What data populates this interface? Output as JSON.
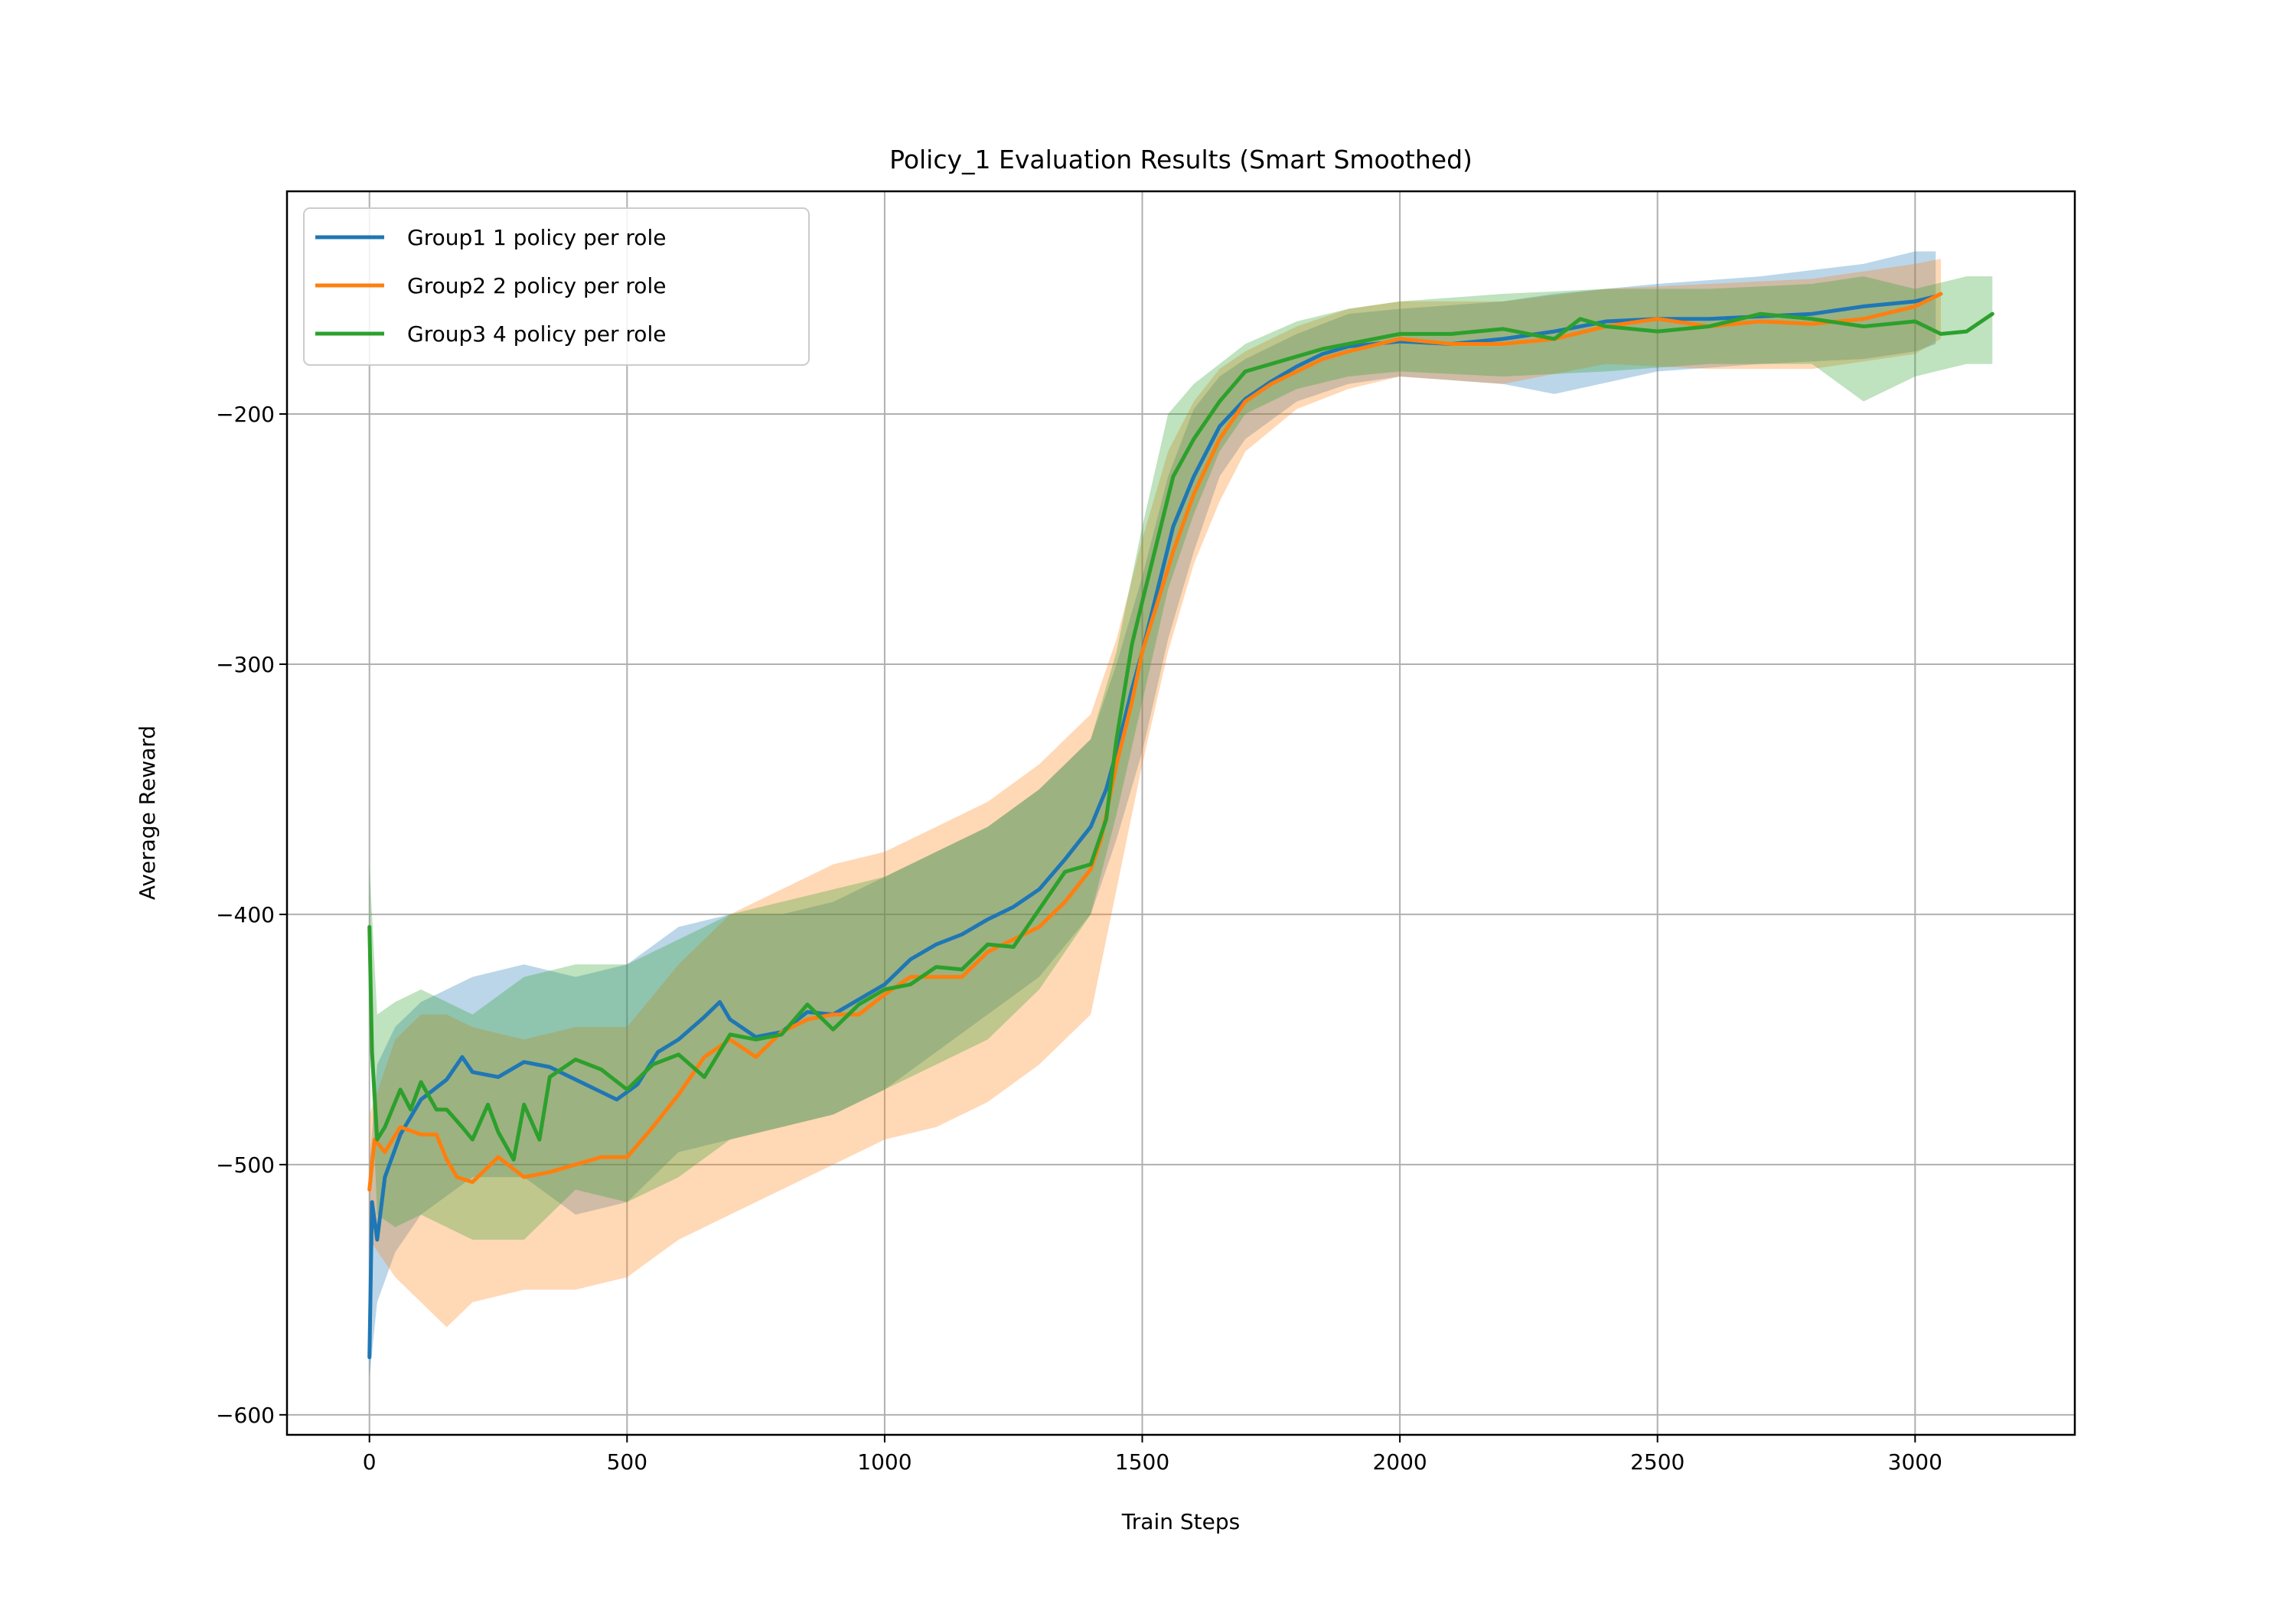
{
  "chart_data": {
    "type": "line",
    "title": "Policy_1 Evaluation Results (Smart Smoothed)",
    "xlabel": "Train Steps",
    "ylabel": "Average Reward",
    "xlim": [
      -160,
      3310
    ],
    "ylim": [
      -608,
      -111
    ],
    "xticks": [
      0,
      500,
      1000,
      1500,
      2000,
      2500,
      3000
    ],
    "yticks": [
      -600,
      -500,
      -400,
      -300,
      -200
    ],
    "grid": true,
    "legend_position": "top-left",
    "series": [
      {
        "name": "Group1 1 policy per role",
        "color": "#1f77b4",
        "points": [
          [
            0,
            -577
          ],
          [
            5,
            -515
          ],
          [
            15,
            -530
          ],
          [
            30,
            -505
          ],
          [
            60,
            -488
          ],
          [
            100,
            -474
          ],
          [
            150,
            -466
          ],
          [
            180,
            -457
          ],
          [
            200,
            -463
          ],
          [
            250,
            -465
          ],
          [
            300,
            -459
          ],
          [
            350,
            -461
          ],
          [
            400,
            -466
          ],
          [
            450,
            -471
          ],
          [
            480,
            -474
          ],
          [
            520,
            -468
          ],
          [
            560,
            -455
          ],
          [
            600,
            -450
          ],
          [
            650,
            -441
          ],
          [
            680,
            -435
          ],
          [
            700,
            -442
          ],
          [
            750,
            -449
          ],
          [
            800,
            -447
          ],
          [
            850,
            -439
          ],
          [
            900,
            -440
          ],
          [
            950,
            -434
          ],
          [
            1000,
            -428
          ],
          [
            1050,
            -418
          ],
          [
            1100,
            -412
          ],
          [
            1150,
            -408
          ],
          [
            1200,
            -402
          ],
          [
            1250,
            -397
          ],
          [
            1300,
            -390
          ],
          [
            1350,
            -378
          ],
          [
            1400,
            -365
          ],
          [
            1430,
            -350
          ],
          [
            1450,
            -335
          ],
          [
            1480,
            -310
          ],
          [
            1500,
            -295
          ],
          [
            1530,
            -270
          ],
          [
            1560,
            -245
          ],
          [
            1600,
            -225
          ],
          [
            1650,
            -205
          ],
          [
            1700,
            -194
          ],
          [
            1750,
            -187
          ],
          [
            1800,
            -181
          ],
          [
            1850,
            -176
          ],
          [
            1900,
            -173
          ],
          [
            2000,
            -171
          ],
          [
            2100,
            -172
          ],
          [
            2200,
            -170
          ],
          [
            2300,
            -167
          ],
          [
            2400,
            -163
          ],
          [
            2500,
            -162
          ],
          [
            2600,
            -162
          ],
          [
            2700,
            -161
          ],
          [
            2800,
            -160
          ],
          [
            2900,
            -157
          ],
          [
            3000,
            -155
          ],
          [
            3040,
            -153
          ]
        ],
        "band": [
          [
            0,
            -585,
            -500
          ],
          [
            15,
            -555,
            -460
          ],
          [
            50,
            -535,
            -445
          ],
          [
            100,
            -520,
            -435
          ],
          [
            200,
            -505,
            -425
          ],
          [
            300,
            -505,
            -420
          ],
          [
            400,
            -520,
            -425
          ],
          [
            500,
            -515,
            -420
          ],
          [
            600,
            -495,
            -405
          ],
          [
            700,
            -490,
            -400
          ],
          [
            800,
            -485,
            -400
          ],
          [
            900,
            -480,
            -395
          ],
          [
            1000,
            -470,
            -385
          ],
          [
            1100,
            -455,
            -375
          ],
          [
            1200,
            -440,
            -365
          ],
          [
            1300,
            -425,
            -350
          ],
          [
            1400,
            -400,
            -330
          ],
          [
            1450,
            -370,
            -300
          ],
          [
            1500,
            -335,
            -265
          ],
          [
            1550,
            -290,
            -225
          ],
          [
            1600,
            -255,
            -198
          ],
          [
            1650,
            -225,
            -185
          ],
          [
            1700,
            -210,
            -178
          ],
          [
            1800,
            -195,
            -168
          ],
          [
            1900,
            -188,
            -160
          ],
          [
            2000,
            -185,
            -158
          ],
          [
            2200,
            -188,
            -155
          ],
          [
            2300,
            -192,
            -152
          ],
          [
            2500,
            -183,
            -148
          ],
          [
            2700,
            -180,
            -145
          ],
          [
            2900,
            -178,
            -140
          ],
          [
            3000,
            -175,
            -135
          ],
          [
            3040,
            -172,
            -135
          ]
        ]
      },
      {
        "name": "Group2 2 policy per role",
        "color": "#ff7f0e",
        "points": [
          [
            0,
            -510
          ],
          [
            10,
            -490
          ],
          [
            30,
            -495
          ],
          [
            60,
            -485
          ],
          [
            100,
            -488
          ],
          [
            130,
            -488
          ],
          [
            150,
            -498
          ],
          [
            170,
            -505
          ],
          [
            200,
            -507
          ],
          [
            250,
            -497
          ],
          [
            300,
            -505
          ],
          [
            350,
            -503
          ],
          [
            400,
            -500
          ],
          [
            450,
            -497
          ],
          [
            500,
            -497
          ],
          [
            550,
            -485
          ],
          [
            600,
            -472
          ],
          [
            650,
            -457
          ],
          [
            700,
            -450
          ],
          [
            750,
            -457
          ],
          [
            800,
            -447
          ],
          [
            850,
            -442
          ],
          [
            900,
            -440
          ],
          [
            950,
            -440
          ],
          [
            1000,
            -432
          ],
          [
            1050,
            -425
          ],
          [
            1100,
            -425
          ],
          [
            1150,
            -425
          ],
          [
            1200,
            -415
          ],
          [
            1250,
            -410
          ],
          [
            1300,
            -405
          ],
          [
            1350,
            -395
          ],
          [
            1400,
            -382
          ],
          [
            1420,
            -370
          ],
          [
            1450,
            -340
          ],
          [
            1480,
            -315
          ],
          [
            1500,
            -295
          ],
          [
            1530,
            -275
          ],
          [
            1560,
            -255
          ],
          [
            1600,
            -232
          ],
          [
            1650,
            -210
          ],
          [
            1700,
            -195
          ],
          [
            1750,
            -188
          ],
          [
            1800,
            -183
          ],
          [
            1850,
            -178
          ],
          [
            1900,
            -175
          ],
          [
            2000,
            -170
          ],
          [
            2100,
            -172
          ],
          [
            2200,
            -172
          ],
          [
            2300,
            -170
          ],
          [
            2400,
            -165
          ],
          [
            2500,
            -162
          ],
          [
            2600,
            -165
          ],
          [
            2700,
            -163
          ],
          [
            2800,
            -164
          ],
          [
            2900,
            -162
          ],
          [
            3000,
            -157
          ],
          [
            3050,
            -152
          ]
        ],
        "band": [
          [
            0,
            -530,
            -480
          ],
          [
            50,
            -545,
            -450
          ],
          [
            100,
            -555,
            -440
          ],
          [
            150,
            -565,
            -440
          ],
          [
            200,
            -555,
            -445
          ],
          [
            300,
            -550,
            -450
          ],
          [
            400,
            -550,
            -445
          ],
          [
            500,
            -545,
            -445
          ],
          [
            600,
            -530,
            -420
          ],
          [
            700,
            -520,
            -400
          ],
          [
            800,
            -510,
            -390
          ],
          [
            900,
            -500,
            -380
          ],
          [
            1000,
            -490,
            -375
          ],
          [
            1100,
            -485,
            -365
          ],
          [
            1200,
            -475,
            -355
          ],
          [
            1300,
            -460,
            -340
          ],
          [
            1400,
            -440,
            -320
          ],
          [
            1450,
            -390,
            -290
          ],
          [
            1500,
            -340,
            -250
          ],
          [
            1550,
            -295,
            -215
          ],
          [
            1600,
            -260,
            -195
          ],
          [
            1650,
            -235,
            -182
          ],
          [
            1700,
            -215,
            -175
          ],
          [
            1800,
            -198,
            -165
          ],
          [
            1900,
            -190,
            -158
          ],
          [
            2000,
            -185,
            -155
          ],
          [
            2200,
            -188,
            -155
          ],
          [
            2400,
            -180,
            -150
          ],
          [
            2600,
            -182,
            -148
          ],
          [
            2800,
            -182,
            -146
          ],
          [
            3000,
            -176,
            -140
          ],
          [
            3050,
            -170,
            -138
          ]
        ]
      },
      {
        "name": "Group3 4 policy per role",
        "color": "#2ca02c",
        "points": [
          [
            0,
            -405
          ],
          [
            5,
            -455
          ],
          [
            15,
            -490
          ],
          [
            30,
            -485
          ],
          [
            60,
            -470
          ],
          [
            80,
            -478
          ],
          [
            100,
            -467
          ],
          [
            130,
            -478
          ],
          [
            150,
            -478
          ],
          [
            180,
            -485
          ],
          [
            200,
            -490
          ],
          [
            230,
            -476
          ],
          [
            250,
            -487
          ],
          [
            280,
            -498
          ],
          [
            300,
            -476
          ],
          [
            330,
            -490
          ],
          [
            350,
            -465
          ],
          [
            400,
            -458
          ],
          [
            450,
            -462
          ],
          [
            500,
            -470
          ],
          [
            550,
            -460
          ],
          [
            600,
            -456
          ],
          [
            650,
            -465
          ],
          [
            700,
            -448
          ],
          [
            750,
            -450
          ],
          [
            800,
            -448
          ],
          [
            850,
            -436
          ],
          [
            900,
            -446
          ],
          [
            950,
            -436
          ],
          [
            1000,
            -430
          ],
          [
            1050,
            -428
          ],
          [
            1100,
            -421
          ],
          [
            1150,
            -422
          ],
          [
            1200,
            -412
          ],
          [
            1250,
            -413
          ],
          [
            1300,
            -398
          ],
          [
            1350,
            -383
          ],
          [
            1400,
            -380
          ],
          [
            1430,
            -362
          ],
          [
            1450,
            -330
          ],
          [
            1480,
            -292
          ],
          [
            1500,
            -275
          ],
          [
            1530,
            -250
          ],
          [
            1560,
            -225
          ],
          [
            1600,
            -210
          ],
          [
            1650,
            -195
          ],
          [
            1700,
            -183
          ],
          [
            1750,
            -180
          ],
          [
            1800,
            -177
          ],
          [
            1850,
            -174
          ],
          [
            1900,
            -172
          ],
          [
            2000,
            -168
          ],
          [
            2100,
            -168
          ],
          [
            2200,
            -166
          ],
          [
            2300,
            -170
          ],
          [
            2350,
            -162
          ],
          [
            2400,
            -165
          ],
          [
            2500,
            -167
          ],
          [
            2600,
            -165
          ],
          [
            2700,
            -160
          ],
          [
            2800,
            -162
          ],
          [
            2900,
            -165
          ],
          [
            3000,
            -163
          ],
          [
            3050,
            -168
          ],
          [
            3100,
            -167
          ],
          [
            3150,
            -160
          ]
        ],
        "band": [
          [
            0,
            -445,
            -380
          ],
          [
            15,
            -520,
            -440
          ],
          [
            50,
            -525,
            -435
          ],
          [
            100,
            -520,
            -430
          ],
          [
            200,
            -530,
            -440
          ],
          [
            300,
            -530,
            -425
          ],
          [
            400,
            -510,
            -420
          ],
          [
            500,
            -515,
            -420
          ],
          [
            600,
            -505,
            -410
          ],
          [
            700,
            -490,
            -400
          ],
          [
            800,
            -485,
            -395
          ],
          [
            900,
            -480,
            -390
          ],
          [
            1000,
            -470,
            -385
          ],
          [
            1100,
            -460,
            -375
          ],
          [
            1200,
            -450,
            -365
          ],
          [
            1300,
            -430,
            -350
          ],
          [
            1400,
            -400,
            -330
          ],
          [
            1450,
            -360,
            -295
          ],
          [
            1500,
            -315,
            -245
          ],
          [
            1550,
            -270,
            -200
          ],
          [
            1600,
            -240,
            -188
          ],
          [
            1650,
            -215,
            -180
          ],
          [
            1700,
            -200,
            -172
          ],
          [
            1800,
            -190,
            -163
          ],
          [
            1900,
            -185,
            -158
          ],
          [
            2000,
            -183,
            -155
          ],
          [
            2200,
            -185,
            -152
          ],
          [
            2400,
            -183,
            -150
          ],
          [
            2600,
            -180,
            -150
          ],
          [
            2800,
            -180,
            -148
          ],
          [
            2900,
            -195,
            -145
          ],
          [
            3000,
            -185,
            -150
          ],
          [
            3100,
            -180,
            -145
          ],
          [
            3150,
            -180,
            -145
          ]
        ]
      }
    ]
  }
}
